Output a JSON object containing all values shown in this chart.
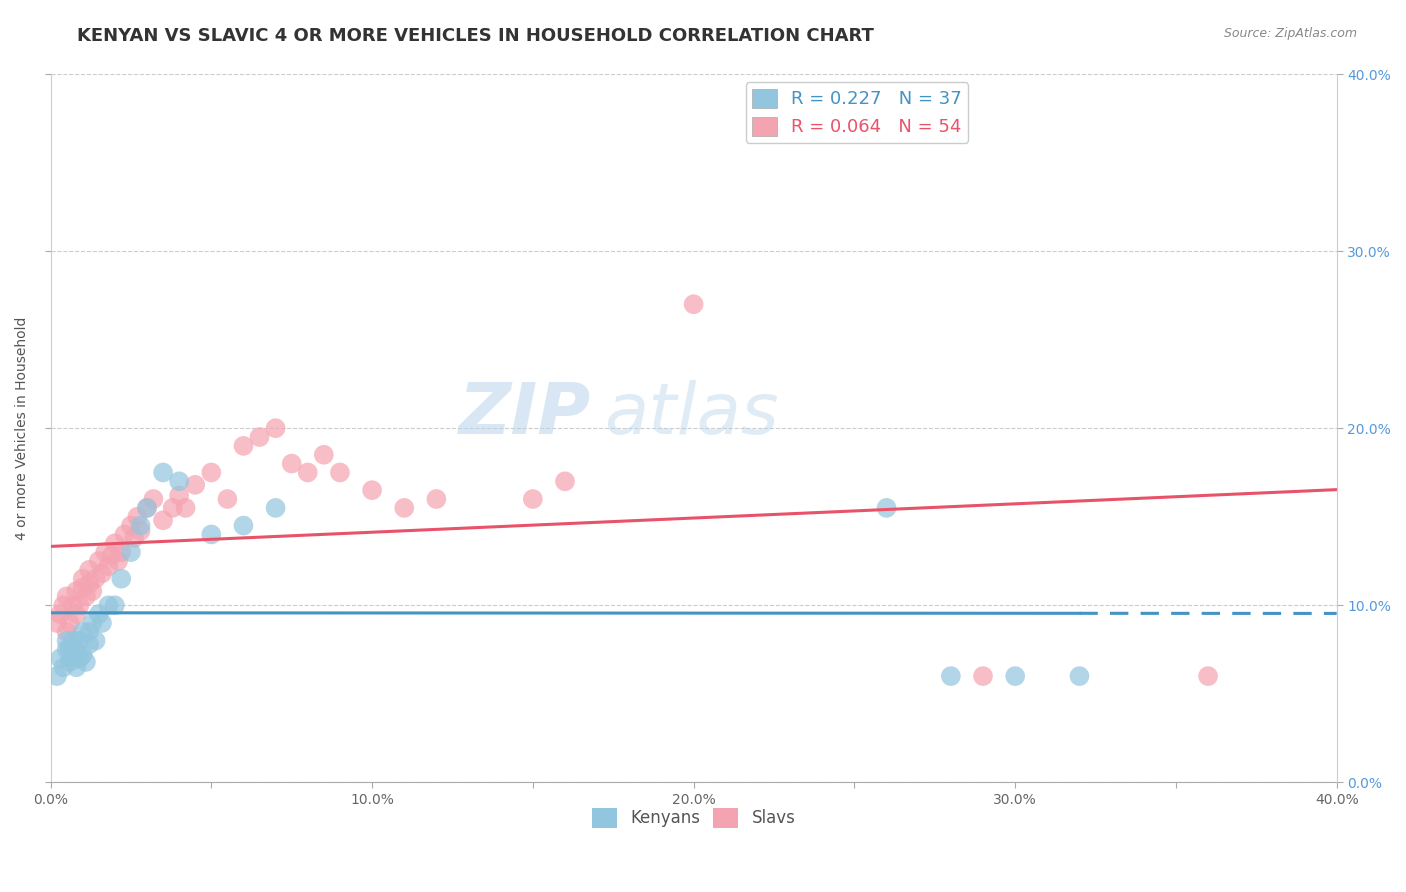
{
  "title": "KENYAN VS SLAVIC 4 OR MORE VEHICLES IN HOUSEHOLD CORRELATION CHART",
  "source": "Source: ZipAtlas.com",
  "ylabel": "4 or more Vehicles in Household",
  "xlim": [
    0.0,
    0.4
  ],
  "ylim": [
    0.0,
    0.4
  ],
  "xtick_labels": [
    "0.0%",
    "",
    "10.0%",
    "",
    "20.0%",
    "",
    "30.0%",
    "",
    "40.0%"
  ],
  "xtick_vals": [
    0.0,
    0.05,
    0.1,
    0.15,
    0.2,
    0.25,
    0.3,
    0.35,
    0.4
  ],
  "ytick_labels": [
    "0.0%",
    "10.0%",
    "20.0%",
    "30.0%",
    "40.0%"
  ],
  "ytick_vals": [
    0.0,
    0.1,
    0.2,
    0.3,
    0.4
  ],
  "legend_r_kenyan": "R = 0.227",
  "legend_n_kenyan": "N = 37",
  "legend_r_slavic": "R = 0.064",
  "legend_n_slavic": "N = 54",
  "kenyan_color": "#92c5de",
  "slavic_color": "#f4a3b1",
  "kenyan_line_color": "#4393c3",
  "slavic_line_color": "#e8536a",
  "watermark_zip": "ZIP",
  "watermark_atlas": "atlas",
  "background_color": "#ffffff",
  "grid_color": "#cccccc",
  "title_fontsize": 13,
  "axis_label_fontsize": 10,
  "tick_fontsize": 10,
  "legend_fontsize": 12,
  "kenyan_scatter_x": [
    0.002,
    0.003,
    0.004,
    0.005,
    0.005,
    0.006,
    0.006,
    0.007,
    0.007,
    0.008,
    0.008,
    0.009,
    0.009,
    0.01,
    0.01,
    0.011,
    0.012,
    0.012,
    0.013,
    0.014,
    0.015,
    0.016,
    0.018,
    0.02,
    0.022,
    0.025,
    0.028,
    0.03,
    0.035,
    0.04,
    0.05,
    0.06,
    0.07,
    0.26,
    0.28,
    0.3,
    0.32
  ],
  "kenyan_scatter_y": [
    0.06,
    0.07,
    0.065,
    0.075,
    0.08,
    0.068,
    0.075,
    0.07,
    0.08,
    0.065,
    0.075,
    0.07,
    0.08,
    0.072,
    0.085,
    0.068,
    0.078,
    0.085,
    0.09,
    0.08,
    0.095,
    0.09,
    0.1,
    0.1,
    0.115,
    0.13,
    0.145,
    0.155,
    0.175,
    0.17,
    0.14,
    0.145,
    0.155,
    0.155,
    0.06,
    0.06,
    0.06
  ],
  "slavic_scatter_x": [
    0.002,
    0.003,
    0.004,
    0.005,
    0.005,
    0.006,
    0.007,
    0.008,
    0.008,
    0.009,
    0.01,
    0.01,
    0.011,
    0.012,
    0.012,
    0.013,
    0.014,
    0.015,
    0.016,
    0.017,
    0.018,
    0.019,
    0.02,
    0.021,
    0.022,
    0.023,
    0.025,
    0.026,
    0.027,
    0.028,
    0.03,
    0.032,
    0.035,
    0.038,
    0.04,
    0.042,
    0.045,
    0.05,
    0.055,
    0.06,
    0.065,
    0.07,
    0.075,
    0.08,
    0.085,
    0.09,
    0.1,
    0.11,
    0.12,
    0.15,
    0.16,
    0.2,
    0.29,
    0.36
  ],
  "slavic_scatter_y": [
    0.09,
    0.095,
    0.1,
    0.085,
    0.105,
    0.09,
    0.1,
    0.095,
    0.108,
    0.1,
    0.11,
    0.115,
    0.105,
    0.112,
    0.12,
    0.108,
    0.115,
    0.125,
    0.118,
    0.13,
    0.122,
    0.128,
    0.135,
    0.125,
    0.13,
    0.14,
    0.145,
    0.138,
    0.15,
    0.142,
    0.155,
    0.16,
    0.148,
    0.155,
    0.162,
    0.155,
    0.168,
    0.175,
    0.16,
    0.19,
    0.195,
    0.2,
    0.18,
    0.175,
    0.185,
    0.175,
    0.165,
    0.155,
    0.16,
    0.16,
    0.17,
    0.27,
    0.06,
    0.06
  ]
}
